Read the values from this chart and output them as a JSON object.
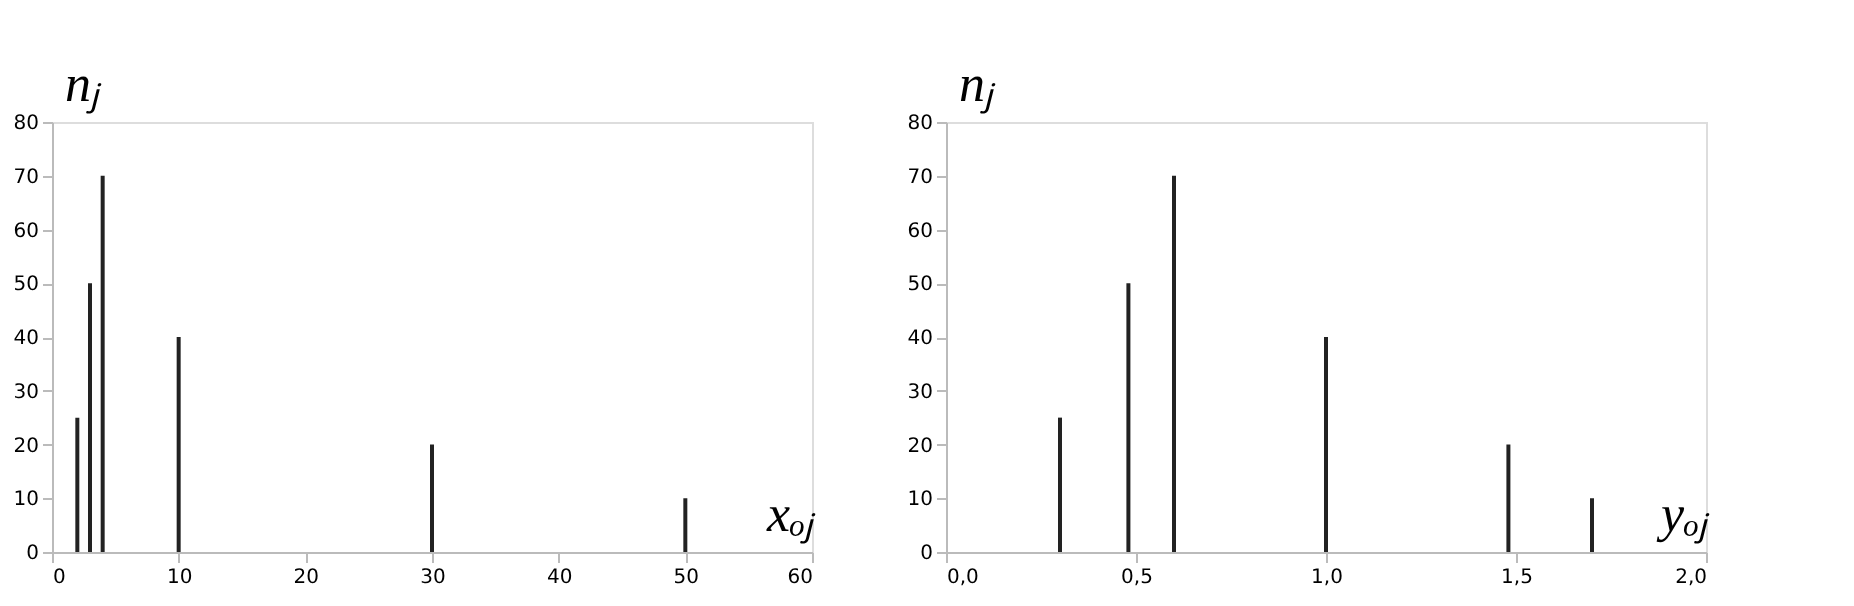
{
  "chart_data": [
    {
      "type": "bar",
      "xlabel": "xₒⱼ",
      "ylabel": "nⱼ",
      "x": [
        2,
        3,
        4,
        10,
        30,
        50
      ],
      "values": [
        25,
        50,
        70,
        40,
        20,
        10
      ],
      "color": "#222222",
      "xlim": [
        0,
        60
      ],
      "xticks": [
        0,
        10,
        20,
        30,
        40,
        50,
        60
      ],
      "ylim": [
        0,
        80
      ],
      "yticks": [
        0,
        10,
        20,
        30,
        40,
        50,
        60,
        70,
        80
      ],
      "grid": false
    },
    {
      "type": "bar",
      "xlabel": "yₒⱼ",
      "ylabel": "nⱼ",
      "x": [
        0.3,
        0.48,
        0.6,
        1.0,
        1.48,
        1.7
      ],
      "values": [
        25,
        50,
        70,
        40,
        20,
        10
      ],
      "color": "#222222",
      "xlim": [
        0,
        2
      ],
      "xticks": [
        {
          "value": 0,
          "label": "0,0"
        },
        {
          "value": 0.5,
          "label": "0,5"
        },
        {
          "value": 1,
          "label": "1,0"
        },
        {
          "value": 1.5,
          "label": "1,5"
        },
        {
          "value": 2,
          "label": "2,0"
        }
      ],
      "ylim": [
        0,
        80
      ],
      "yticks": [
        0,
        10,
        20,
        30,
        40,
        50,
        60,
        70,
        80
      ],
      "grid": false
    }
  ]
}
